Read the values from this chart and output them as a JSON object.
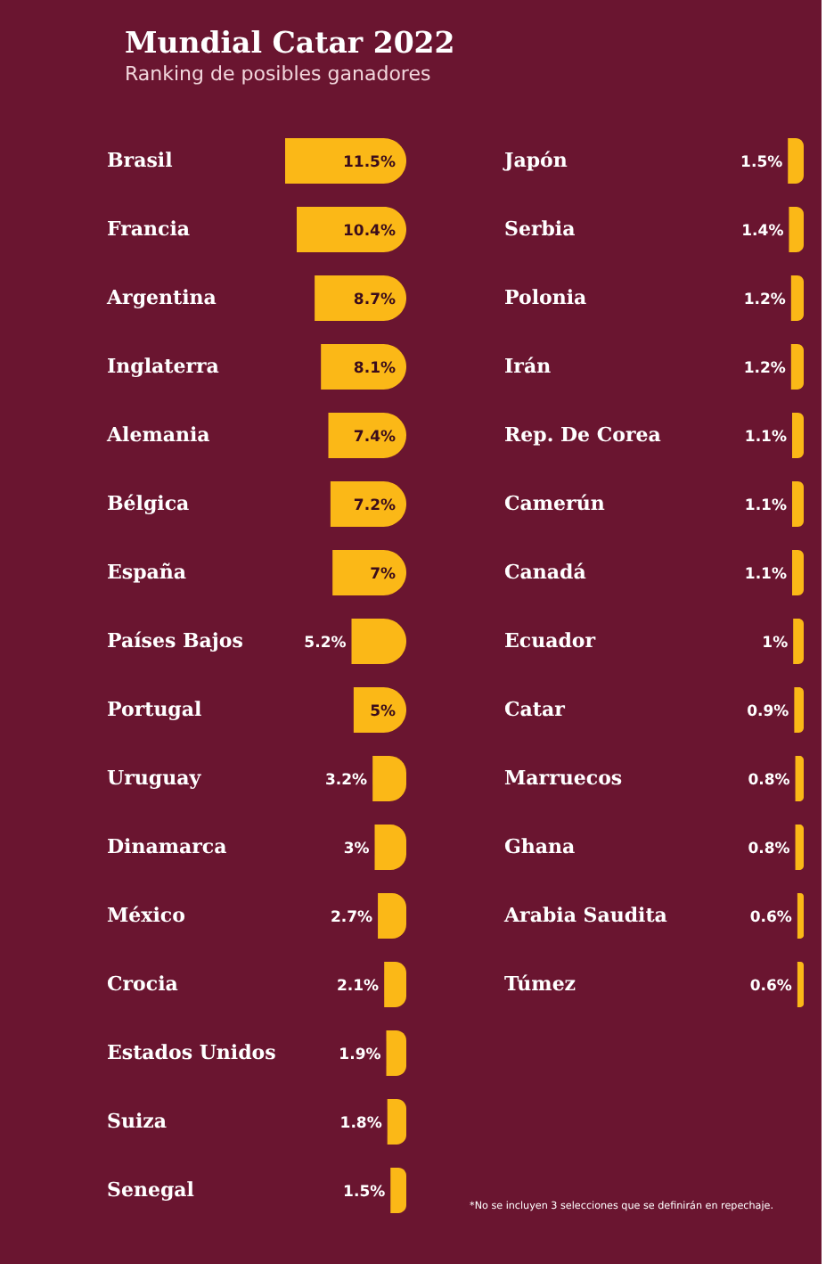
{
  "chart_data": [
    {
      "type": "bar",
      "orientation": "horizontal",
      "title": "Mundial Catar 2022",
      "subtitle": "Ranking de posibles ganadores",
      "categories": [
        "Brasil",
        "Francia",
        "Argentina",
        "Inglaterra",
        "Alemania",
        "Bélgica",
        "España",
        "Países Bajos",
        "Portugal",
        "Uruguay",
        "Dinamarca",
        "México",
        "Crocia",
        "Estados Unidos",
        "Suiza",
        "Senegal"
      ],
      "values": [
        11.5,
        10.4,
        8.7,
        8.1,
        7.4,
        7.2,
        7,
        5.2,
        5,
        3.2,
        3,
        2.7,
        2.1,
        1.9,
        1.8,
        1.5
      ],
      "value_labels": [
        "11.5%",
        "10.4%",
        "8.7%",
        "8.1%",
        "7.4%",
        "7.2%",
        "7%",
        "5.2%",
        "5%",
        "3.2%",
        "3%",
        "2.7%",
        "2.1%",
        "1.9%",
        "1.8%",
        "1.5%"
      ],
      "color": "#fbb817",
      "tick_labels": "y"
    },
    {
      "type": "bar",
      "orientation": "horizontal",
      "categories": [
        "Japón",
        "Serbia",
        "Polonia",
        "Irán",
        "Rep. De Corea",
        "Camerún",
        "Canadá",
        "Ecuador",
        "Catar",
        "Marruecos",
        "Ghana",
        "Arabia Saudita",
        "Túmez"
      ],
      "values": [
        1.5,
        1.4,
        1.2,
        1.2,
        1.1,
        1.1,
        1.1,
        1,
        0.9,
        0.8,
        0.8,
        0.6,
        0.6
      ],
      "value_labels": [
        "1.5%",
        "1.4%",
        "1.2%",
        "1.2%",
        "1.1%",
        "1.1%",
        "1.1%",
        "1%",
        "0.9%",
        "0.8%",
        "0.8%",
        "0.6%",
        "0.6%"
      ],
      "color": "#fbb817",
      "tick_labels": "y",
      "annotations": [
        "*No se incluyen 3 selecciones que se definirán en repechaje."
      ]
    }
  ]
}
